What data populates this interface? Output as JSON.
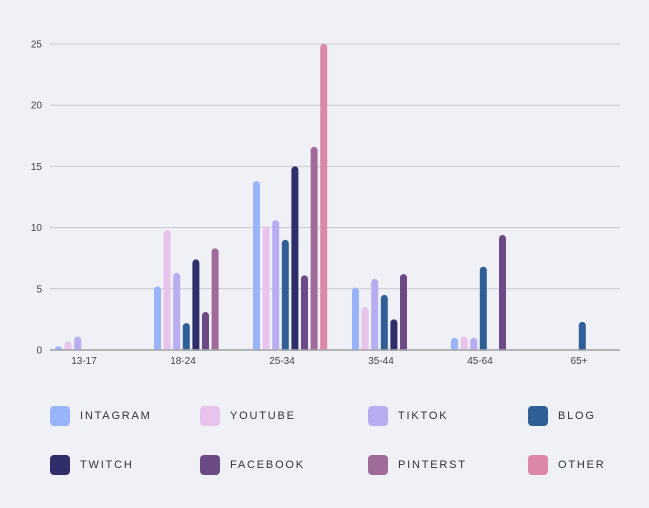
{
  "chart_data": {
    "type": "bar",
    "title": "",
    "xlabel": "",
    "ylabel": "",
    "ylim": [
      0,
      25
    ],
    "yticks": [
      "0",
      "5",
      "10",
      "15",
      "20",
      "25"
    ],
    "grid": true,
    "legend_position": "bottom",
    "categories": [
      "13-17",
      "18-24",
      "25-34",
      "35-44",
      "45-64",
      "65+"
    ],
    "series": [
      {
        "name": "INTAGRAM",
        "color": "#99b4f9",
        "values": [
          0.3,
          5.2,
          13.8,
          5.1,
          1.0,
          0
        ]
      },
      {
        "name": "YOUTUBE",
        "color": "#e8c3ec",
        "values": [
          0.7,
          9.8,
          10.1,
          3.5,
          1.1,
          0
        ]
      },
      {
        "name": "TIKTOK",
        "color": "#b7aef2",
        "values": [
          1.1,
          6.3,
          10.6,
          5.8,
          1.0,
          0
        ]
      },
      {
        "name": "BLOG",
        "color": "#2f5f96",
        "values": [
          0,
          2.2,
          9.0,
          4.5,
          6.8,
          2.3
        ]
      },
      {
        "name": "TWITCH",
        "color": "#2e2e6b",
        "values": [
          0,
          7.4,
          15.0,
          2.5,
          0,
          0
        ]
      },
      {
        "name": "FACEBOOK",
        "color": "#6b4a85",
        "values": [
          0,
          3.1,
          6.1,
          6.2,
          9.4,
          0
        ]
      },
      {
        "name": "PINTERST",
        "color": "#a06b99",
        "values": [
          0,
          8.3,
          16.6,
          0,
          0,
          0
        ]
      },
      {
        "name": "OTHER",
        "color": "#dc86a8",
        "values": [
          0,
          0,
          25.0,
          0,
          0,
          0
        ]
      }
    ]
  }
}
